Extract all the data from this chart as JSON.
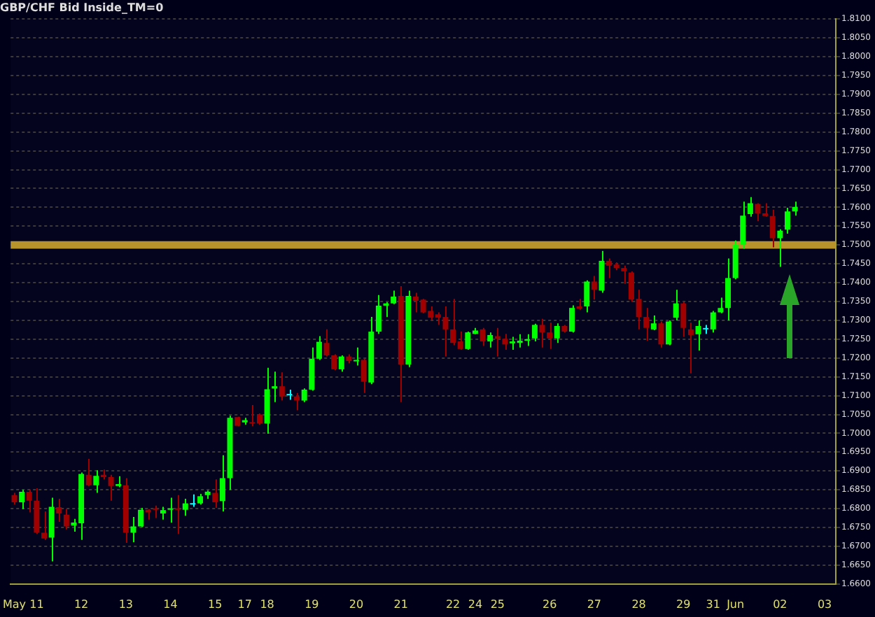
{
  "chart_data": {
    "type": "candlestick",
    "title": "GBP/CHF Bid Inside_TM=0",
    "categories": [
      "May",
      null,
      null,
      "11",
      null,
      null,
      null,
      null,
      null,
      "12",
      null,
      null,
      null,
      null,
      null,
      "13",
      null,
      null,
      null,
      null,
      null,
      "14",
      null,
      null,
      null,
      null,
      null,
      "15",
      null,
      null,
      null,
      "17",
      null,
      null,
      "18",
      null,
      null,
      null,
      null,
      null,
      "19",
      null,
      null,
      null,
      null,
      null,
      "20",
      null,
      null,
      null,
      null,
      null,
      "21",
      null,
      null,
      null,
      null,
      null,
      null,
      "22",
      null,
      null,
      "24",
      null,
      null,
      "25",
      null,
      null,
      null,
      null,
      null,
      null,
      "26",
      null,
      null,
      null,
      null,
      null,
      "27",
      null,
      null,
      null,
      null,
      null,
      "28",
      null,
      null,
      null,
      null,
      null,
      "29",
      null,
      null,
      null,
      "31",
      null,
      null,
      "Jun",
      null,
      null,
      null,
      null,
      null,
      "02",
      null,
      null,
      null,
      null,
      null,
      "03",
      null
    ],
    "ohlc": [
      [
        1.6836,
        1.6842,
        1.6811,
        1.6817
      ],
      [
        1.6817,
        1.685,
        1.6799,
        1.6845
      ],
      [
        1.6845,
        1.685,
        1.679,
        1.6821
      ],
      [
        1.6821,
        1.6854,
        1.6733,
        1.6736
      ],
      [
        1.6736,
        1.6793,
        1.6717,
        1.6721
      ],
      [
        1.6723,
        1.6829,
        1.666,
        1.6805
      ],
      [
        1.6804,
        1.6826,
        1.6765,
        1.6787
      ],
      [
        1.6784,
        1.6799,
        1.6745,
        1.6753
      ],
      [
        1.6755,
        1.6773,
        1.6739,
        1.6763
      ],
      [
        1.6761,
        1.6896,
        1.6717,
        1.6892
      ],
      [
        1.689,
        1.6932,
        1.686,
        1.6862
      ],
      [
        1.6862,
        1.6902,
        1.6842,
        1.6887
      ],
      [
        1.689,
        1.6904,
        1.6878,
        1.6884
      ],
      [
        1.6884,
        1.689,
        1.6821,
        1.686
      ],
      [
        1.686,
        1.6886,
        1.6857,
        1.6865
      ],
      [
        1.6862,
        1.6881,
        1.6709,
        1.6736
      ],
      [
        1.6736,
        1.6778,
        1.6711,
        1.6753
      ],
      [
        1.6753,
        1.6802,
        1.6751,
        1.6797
      ],
      [
        1.6797,
        1.6799,
        1.6771,
        1.679
      ],
      [
        1.6799,
        1.6808,
        1.6775,
        1.6797
      ],
      [
        1.6787,
        1.6805,
        1.6771,
        1.6796
      ],
      [
        1.6797,
        1.6829,
        1.6763,
        1.6799
      ],
      [
        1.6799,
        1.6836,
        1.6733,
        1.6797
      ],
      [
        1.6797,
        1.6826,
        1.6781,
        1.6814
      ],
      [
        1.6811,
        1.6838,
        1.6805,
        1.6811
      ],
      [
        1.6814,
        1.6839,
        1.6811,
        1.6833
      ],
      [
        1.6836,
        1.6848,
        1.6826,
        1.6845
      ],
      [
        1.6842,
        1.6878,
        1.6802,
        1.6817
      ],
      [
        1.682,
        1.6942,
        1.6793,
        1.6881
      ],
      [
        1.6881,
        1.7047,
        1.685,
        1.7041
      ],
      [
        1.7043,
        1.7044,
        1.7019,
        1.702
      ],
      [
        1.7029,
        1.7041,
        1.7023,
        1.7035
      ],
      [
        1.7029,
        1.7075,
        1.7019,
        1.7026
      ],
      [
        1.705,
        1.7053,
        1.7023,
        1.7026
      ],
      [
        1.7026,
        1.7174,
        1.6999,
        1.7117
      ],
      [
        1.7119,
        1.7164,
        1.7083,
        1.7125
      ],
      [
        1.7125,
        1.7162,
        1.7087,
        1.7098
      ],
      [
        1.7101,
        1.7116,
        1.7089,
        1.7101
      ],
      [
        1.7098,
        1.7107,
        1.7061,
        1.7087
      ],
      [
        1.7087,
        1.7119,
        1.7083,
        1.7116
      ],
      [
        1.7116,
        1.7228,
        1.7113,
        1.7198
      ],
      [
        1.7198,
        1.7258,
        1.7195,
        1.7243
      ],
      [
        1.724,
        1.7276,
        1.7204,
        1.7207
      ],
      [
        1.7207,
        1.721,
        1.7168,
        1.717
      ],
      [
        1.717,
        1.7207,
        1.7164,
        1.7204
      ],
      [
        1.7204,
        1.721,
        1.7186,
        1.7192
      ],
      [
        1.7191,
        1.7228,
        1.718,
        1.7195
      ],
      [
        1.7195,
        1.7198,
        1.7107,
        1.7137
      ],
      [
        1.7135,
        1.7309,
        1.7131,
        1.727
      ],
      [
        1.727,
        1.7367,
        1.7264,
        1.7339
      ],
      [
        1.7339,
        1.7348,
        1.7309,
        1.7345
      ],
      [
        1.7345,
        1.7379,
        1.7343,
        1.7363
      ],
      [
        1.7365,
        1.7391,
        1.7083,
        1.7183
      ],
      [
        1.7183,
        1.7379,
        1.7176,
        1.7365
      ],
      [
        1.7363,
        1.7373,
        1.7321,
        1.7352
      ],
      [
        1.7355,
        1.7357,
        1.7319,
        1.7321
      ],
      [
        1.7325,
        1.7337,
        1.73,
        1.7307
      ],
      [
        1.7316,
        1.7321,
        1.7288,
        1.7307
      ],
      [
        1.7309,
        1.7337,
        1.7204,
        1.7276
      ],
      [
        1.7276,
        1.7357,
        1.7234,
        1.724
      ],
      [
        1.7244,
        1.727,
        1.7222,
        1.7224
      ],
      [
        1.7224,
        1.727,
        1.7222,
        1.7268
      ],
      [
        1.7264,
        1.728,
        1.7263,
        1.7273
      ],
      [
        1.7276,
        1.728,
        1.7232,
        1.7244
      ],
      [
        1.7244,
        1.7268,
        1.7228,
        1.7261
      ],
      [
        1.7258,
        1.728,
        1.7204,
        1.7251
      ],
      [
        1.7251,
        1.7264,
        1.7222,
        1.7236
      ],
      [
        1.7239,
        1.7256,
        1.7222,
        1.7244
      ],
      [
        1.724,
        1.7263,
        1.7228,
        1.7246
      ],
      [
        1.7246,
        1.7263,
        1.7232,
        1.725
      ],
      [
        1.7252,
        1.7291,
        1.7244,
        1.7288
      ],
      [
        1.7288,
        1.7304,
        1.7228,
        1.7268
      ],
      [
        1.7268,
        1.7294,
        1.7224,
        1.7252
      ],
      [
        1.7252,
        1.7292,
        1.724,
        1.7285
      ],
      [
        1.7285,
        1.7288,
        1.7268,
        1.727
      ],
      [
        1.727,
        1.734,
        1.7268,
        1.7333
      ],
      [
        1.7337,
        1.7357,
        1.7328,
        1.7331
      ],
      [
        1.7337,
        1.7406,
        1.7321,
        1.7403
      ],
      [
        1.7403,
        1.7418,
        1.7355,
        1.7381
      ],
      [
        1.7379,
        1.7484,
        1.7373,
        1.7458
      ],
      [
        1.7458,
        1.7464,
        1.7412,
        1.7445
      ],
      [
        1.7448,
        1.7454,
        1.7433,
        1.7439
      ],
      [
        1.7439,
        1.7445,
        1.7397,
        1.743
      ],
      [
        1.7427,
        1.743,
        1.7349,
        1.7355
      ],
      [
        1.7357,
        1.7381,
        1.7276,
        1.7309
      ],
      [
        1.7309,
        1.7333,
        1.7246,
        1.728
      ],
      [
        1.7276,
        1.7313,
        1.7274,
        1.7292
      ],
      [
        1.7292,
        1.7297,
        1.7228,
        1.7236
      ],
      [
        1.7236,
        1.73,
        1.7234,
        1.7297
      ],
      [
        1.7307,
        1.7381,
        1.73,
        1.7345
      ],
      [
        1.7345,
        1.7349,
        1.7256,
        1.728
      ],
      [
        1.7276,
        1.7294,
        1.7159,
        1.7261
      ],
      [
        1.7263,
        1.73,
        1.722,
        1.7285
      ],
      [
        1.7276,
        1.7288,
        1.7264,
        1.7276
      ],
      [
        1.7276,
        1.7325,
        1.7268,
        1.7321
      ],
      [
        1.7321,
        1.736,
        1.7319,
        1.7333
      ],
      [
        1.7333,
        1.7464,
        1.73,
        1.7412
      ],
      [
        1.7412,
        1.7512,
        1.7409,
        1.7502
      ],
      [
        1.7502,
        1.7615,
        1.749,
        1.7578
      ],
      [
        1.7582,
        1.7627,
        1.7575,
        1.7611
      ],
      [
        1.7609,
        1.7611,
        1.7563,
        1.7584
      ],
      [
        1.7584,
        1.7611,
        1.7575,
        1.7577
      ],
      [
        1.7577,
        1.7594,
        1.7494,
        1.7518
      ],
      [
        1.7518,
        1.7542,
        1.7442,
        1.7538
      ],
      [
        1.7541,
        1.7599,
        1.753,
        1.7589
      ],
      [
        1.7589,
        1.7615,
        1.7578,
        1.7601
      ],
      null,
      null,
      null,
      null,
      null
    ],
    "colors": [
      "#a00000",
      "#00ff00",
      "#a00000",
      "#a00000",
      "#a00000",
      "#00ff00",
      "#a00000",
      "#a00000",
      "#00ff00",
      "#00ff00",
      "#a00000",
      "#00ff00",
      "#a00000",
      "#a00000",
      "#00ff00",
      "#a00000",
      "#00ff00",
      "#00ff00",
      "#a00000",
      "#a00000",
      "#00ff00",
      "#00ff00",
      "#a00000",
      "#00ff00",
      "#00ffff",
      "#00ff00",
      "#00ff00",
      "#a00000",
      "#00ff00",
      "#00ff00",
      "#a00000",
      "#00ff00",
      "#a00000",
      "#a00000",
      "#00ff00",
      "#00ff00",
      "#a00000",
      "#00ffff",
      "#a00000",
      "#00ff00",
      "#00ff00",
      "#00ff00",
      "#a00000",
      "#a00000",
      "#00ff00",
      "#a00000",
      "#00ff00",
      "#a00000",
      "#00ff00",
      "#00ff00",
      "#00ff00",
      "#00ff00",
      "#a00000",
      "#00ff00",
      "#a00000",
      "#a00000",
      "#a00000",
      "#a00000",
      "#a00000",
      "#a00000",
      "#a00000",
      "#00ff00",
      "#00ff00",
      "#a00000",
      "#00ff00",
      "#a00000",
      "#a00000",
      "#00ff00",
      "#00ff00",
      "#00ff00",
      "#00ff00",
      "#a00000",
      "#a00000",
      "#00ff00",
      "#a00000",
      "#00ff00",
      "#a00000",
      "#00ff00",
      "#a00000",
      "#00ff00",
      "#a00000",
      "#a00000",
      "#a00000",
      "#a00000",
      "#a00000",
      "#a00000",
      "#00ff00",
      "#a00000",
      "#00ff00",
      "#00ff00",
      "#a00000",
      "#a00000",
      "#00ff00",
      "#00ffff",
      "#00ff00",
      "#00ff00",
      "#00ff00",
      "#00ff00",
      "#00ff00",
      "#00ff00",
      "#a00000",
      "#a00000",
      "#a00000",
      "#00ff00",
      "#00ff00",
      "#00ff00",
      null,
      null,
      null,
      null,
      null
    ],
    "ylim": [
      1.66,
      1.81
    ],
    "yticks": [
      {
        "value": 1.66,
        "label": "1.6600"
      },
      {
        "value": 1.665,
        "label": "1.6650"
      },
      {
        "value": 1.67,
        "label": "1.6700"
      },
      {
        "value": 1.675,
        "label": "1.6750"
      },
      {
        "value": 1.68,
        "label": "1.6800"
      },
      {
        "value": 1.685,
        "label": "1.6850"
      },
      {
        "value": 1.69,
        "label": "1.6900"
      },
      {
        "value": 1.695,
        "label": "1.6950"
      },
      {
        "value": 1.7,
        "label": "1.7000"
      },
      {
        "value": 1.705,
        "label": "1.7050"
      },
      {
        "value": 1.71,
        "label": "1.7100"
      },
      {
        "value": 1.715,
        "label": "1.7150"
      },
      {
        "value": 1.72,
        "label": "1.7200"
      },
      {
        "value": 1.725,
        "label": "1.7250"
      },
      {
        "value": 1.73,
        "label": "1.7300"
      },
      {
        "value": 1.735,
        "label": "1.7350"
      },
      {
        "value": 1.74,
        "label": "1.7400"
      },
      {
        "value": 1.745,
        "label": "1.7450"
      },
      {
        "value": 1.75,
        "label": "1.7500"
      },
      {
        "value": 1.755,
        "label": "1.7550"
      },
      {
        "value": 1.76,
        "label": "1.7600"
      },
      {
        "value": 1.765,
        "label": "1.7650"
      },
      {
        "value": 1.77,
        "label": "1.7700"
      },
      {
        "value": 1.775,
        "label": "1.7750"
      },
      {
        "value": 1.78,
        "label": "1.7800"
      },
      {
        "value": 1.785,
        "label": "1.7850"
      },
      {
        "value": 1.79,
        "label": "1.7900"
      },
      {
        "value": 1.795,
        "label": "1.7950"
      },
      {
        "value": 1.8,
        "label": "1.8000"
      },
      {
        "value": 1.805,
        "label": "1.8050"
      },
      {
        "value": 1.81,
        "label": "1.8100"
      }
    ],
    "grid": "y",
    "bands": [
      {
        "axis": "y",
        "from": 1.749,
        "to": 1.751,
        "color": "#b8922a"
      }
    ]
  }
}
